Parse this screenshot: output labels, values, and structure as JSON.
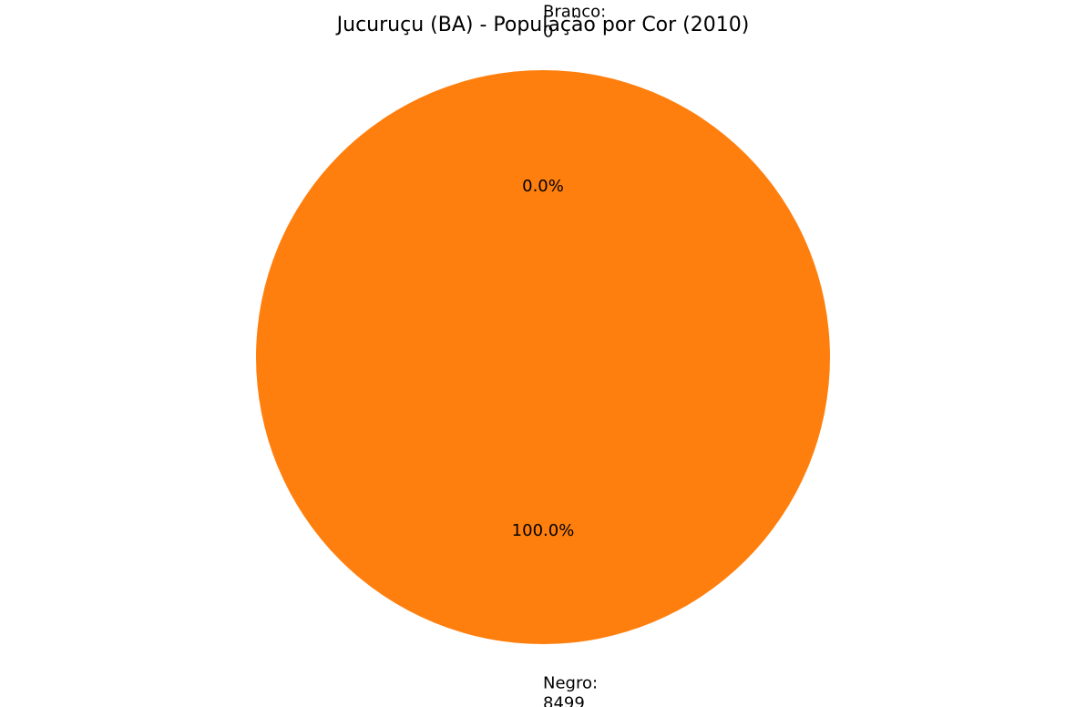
{
  "chart_data": {
    "type": "pie",
    "title": "Jucuruçu (BA) - População por Cor (2010)",
    "slices": [
      {
        "label": "Branco",
        "value": 0,
        "percent_label": "0.0%",
        "label_text": "Branco:\n0",
        "color": "#1f77b4"
      },
      {
        "label": "Negro",
        "value": 8499,
        "percent_label": "100.0%",
        "label_text": "Negro:\n8499",
        "color": "#ff7f0e"
      }
    ],
    "start_angle_deg": 90,
    "counterclockwise": true
  }
}
